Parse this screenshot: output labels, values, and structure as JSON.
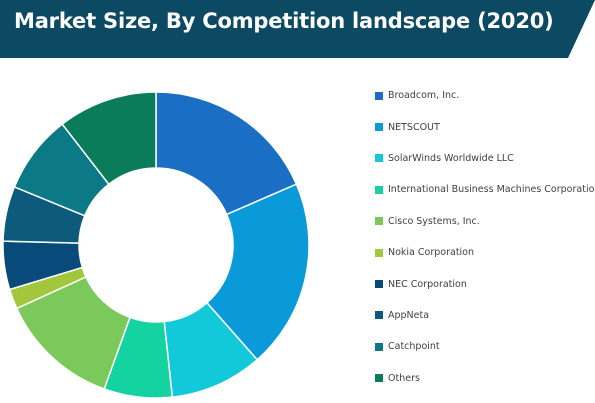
{
  "title": "Market Size, By Competition landscape (2020)",
  "colors": {
    "banner": "#0b4a62"
  },
  "chart_data": {
    "type": "pie",
    "variant": "donut",
    "title": "Market Size, By Competition landscape (2020)",
    "legend_position": "right",
    "slices": [
      {
        "label": "Broadcom, Inc.",
        "value": 18.5,
        "color": "#1a6fc4"
      },
      {
        "label": "NETSCOUT",
        "value": 20.0,
        "color": "#0a9ad9"
      },
      {
        "label": "SolarWinds Worldwide LLC",
        "value": 9.8,
        "color": "#12c9d9"
      },
      {
        "label": "International Business Machines Corporation",
        "value": 7.2,
        "color": "#14d3a0"
      },
      {
        "label": "Cisco Systems, Inc.",
        "value": 12.7,
        "color": "#7bc95a"
      },
      {
        "label": "Nokia Corporation",
        "value": 2.1,
        "color": "#a3c73c"
      },
      {
        "label": "NEC Corporation",
        "value": 5.1,
        "color": "#084a7a"
      },
      {
        "label": "AppNeta",
        "value": 5.8,
        "color": "#0d5a7c"
      },
      {
        "label": "Catchpoint",
        "value": 8.3,
        "color": "#0c7a86"
      },
      {
        "label": "Others",
        "value": 10.5,
        "color": "#0b7c5a"
      }
    ]
  }
}
